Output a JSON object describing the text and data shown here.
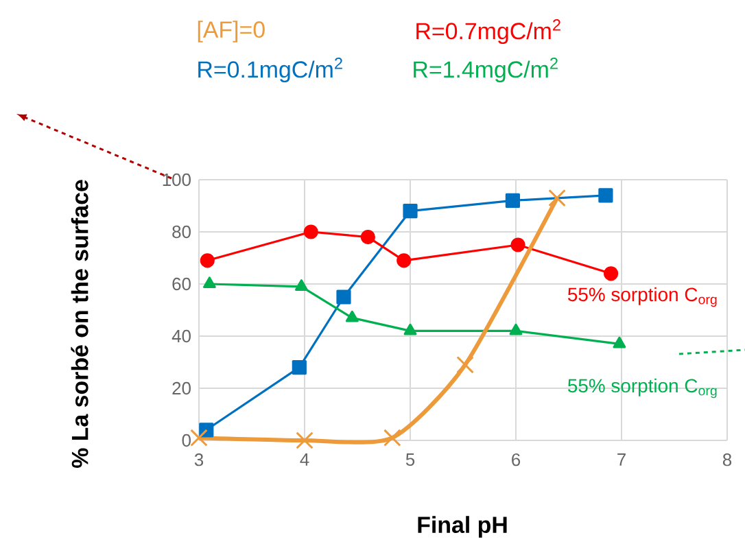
{
  "chart_data": {
    "type": "line",
    "xlabel": "Final pH",
    "ylabel": "% La sorbé on the surface",
    "xlim": [
      3,
      8
    ],
    "xticks": [
      3,
      4,
      5,
      6,
      7,
      8
    ],
    "ylim": [
      0,
      100
    ],
    "yticks": [
      0,
      20,
      40,
      60,
      80,
      100
    ],
    "grid": true,
    "legend": "top",
    "line_style": "solid",
    "series": [
      {
        "name": "[AF]=0",
        "color": "#ed9a3a",
        "marker": "cross",
        "x": [
          3.0,
          4.0,
          4.83,
          5.52,
          6.39
        ],
        "values": [
          1,
          0,
          1,
          29,
          93
        ]
      },
      {
        "name": "R=0.1mgC/m$^{2}$",
        "color": "#0070c0",
        "marker": "square",
        "x": [
          3.07,
          3.95,
          4.37,
          5.0,
          5.97,
          6.85
        ],
        "values": [
          4,
          28,
          55,
          88,
          92,
          94
        ]
      },
      {
        "name": "R=0.7mgC/m$^{2}$",
        "color": "#ff0000",
        "marker": "circle",
        "x": [
          3.08,
          4.06,
          4.6,
          4.94,
          6.02,
          6.9
        ],
        "values": [
          69,
          80,
          78,
          69,
          75,
          64
        ]
      },
      {
        "name": "R=1.4mgC/m$^{2}$",
        "color": "#00b050",
        "marker": "triangle",
        "x": [
          3.1,
          3.97,
          4.45,
          5.0,
          6.0,
          6.98
        ],
        "values": [
          60,
          59,
          47,
          42,
          42,
          37
        ]
      }
    ],
    "annotations": [
      "55% sorption C$_{org}$",
      "55% sorption C$_{org}$"
    ]
  }
}
